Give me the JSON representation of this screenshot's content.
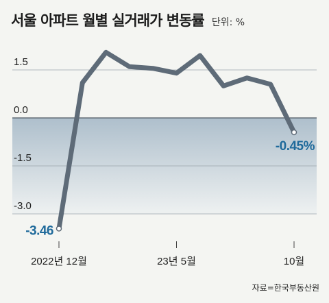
{
  "header": {
    "title": "서울 아파트 월별 실거래가 변동률",
    "unit": "단위: %"
  },
  "source": "자료=한국부동산원",
  "colors": {
    "line": "#5e6b78",
    "background": "#f4f5f2",
    "grid": "#9aa3ab",
    "label": "#1f6a9b"
  },
  "chart_data": {
    "type": "line",
    "title": "서울 아파트 월별 실거래가 변동률",
    "ylim": [
      -3.6,
      2.2
    ],
    "y_ticks": [
      1.5,
      0.0,
      -1.5,
      -3.0
    ],
    "y_tick_labels": [
      "1.5",
      "0.0",
      "-1.5",
      "-3.0"
    ],
    "x": [
      "2022-12",
      "2023-01",
      "2023-02",
      "2023-03",
      "2023-04",
      "2023-05",
      "2023-06",
      "2023-07",
      "2023-08",
      "2023-09",
      "2023-10"
    ],
    "x_tick_labels": [
      {
        "index": 0,
        "label": "2022년 12월"
      },
      {
        "index": 5,
        "label": "23년 5월"
      },
      {
        "index": 10,
        "label": "10월"
      }
    ],
    "series": [
      {
        "values": [
          -3.46,
          1.1,
          2.05,
          1.6,
          1.55,
          1.4,
          1.95,
          1.0,
          1.25,
          1.05,
          -0.45
        ]
      }
    ],
    "annotations": [
      {
        "index": 0,
        "label": "-3.46"
      },
      {
        "index": 10,
        "label": "-0.45%"
      }
    ],
    "grid": true
  }
}
